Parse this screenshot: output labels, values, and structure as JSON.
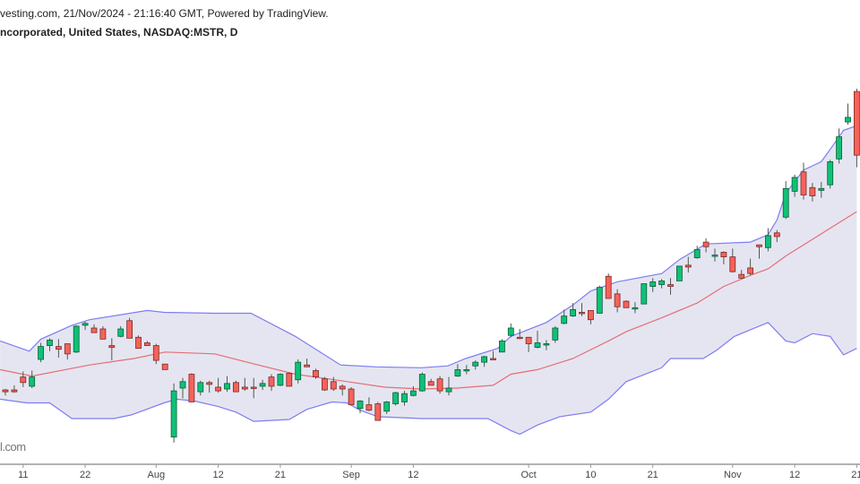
{
  "header": {
    "source_line": "vesting.com, 21/Nov/2024 - 21:16:40 GMT, Powered by TradingView.",
    "symbol_line": "ncorporated, United States, NASDAQ:MSTR, D"
  },
  "watermark": "l.com",
  "colors": {
    "up": "#0fc176",
    "up_border": "#0b5e3a",
    "down": "#f6625a",
    "down_border": "#7a2b27",
    "wick": "#4d5a52",
    "band_fill": "#e5e5f1",
    "band_line": "#7d7df2",
    "basis_line": "#e46f74",
    "axis": "#9a9a9a"
  },
  "chart_data": {
    "type": "candlestick",
    "title": "NASDAQ:MSTR, D",
    "indicator": "Bollinger Bands",
    "price_units": "USD (approximate, no price axis shown)",
    "x_ticks": [
      {
        "index": 3,
        "label": "11"
      },
      {
        "index": 10,
        "label": "22"
      },
      {
        "index": 18,
        "label": "Aug"
      },
      {
        "index": 25,
        "label": "12"
      },
      {
        "index": 32,
        "label": "21"
      },
      {
        "index": 40,
        "label": "Sep"
      },
      {
        "index": 47,
        "label": "12"
      },
      {
        "index": 60,
        "label": "Oct"
      },
      {
        "index": 67,
        "label": "10"
      },
      {
        "index": 74,
        "label": "21"
      },
      {
        "index": 83,
        "label": "Nov"
      },
      {
        "index": 90,
        "label": "12"
      },
      {
        "index": 97,
        "label": "21"
      }
    ],
    "ohlc": [
      [
        154,
        155,
        148,
        152
      ],
      [
        154,
        159,
        151,
        152
      ],
      [
        168,
        174,
        157,
        162
      ],
      [
        158,
        175,
        156,
        168
      ],
      [
        187,
        205,
        184,
        201
      ],
      [
        202,
        210,
        196,
        208
      ],
      [
        201,
        209,
        189,
        198
      ],
      [
        204,
        204,
        187,
        193
      ],
      [
        195,
        224,
        194,
        223
      ],
      [
        224,
        228,
        219,
        226
      ],
      [
        221,
        225,
        216,
        216
      ],
      [
        220,
        223,
        209,
        209
      ],
      [
        202,
        210,
        186,
        200
      ],
      [
        212,
        223,
        211,
        220
      ],
      [
        229,
        232,
        210,
        210
      ],
      [
        211,
        213,
        199,
        199
      ],
      [
        205,
        207,
        202,
        202
      ],
      [
        202,
        204,
        182,
        186
      ],
      [
        182,
        182,
        176,
        176
      ],
      [
        103,
        161,
        97,
        153
      ],
      [
        156,
        167,
        145,
        163
      ],
      [
        171,
        172,
        141,
        141
      ],
      [
        152,
        164,
        148,
        162
      ],
      [
        162,
        164,
        151,
        160
      ],
      [
        157,
        167,
        151,
        153
      ],
      [
        155,
        169,
        152,
        161
      ],
      [
        162,
        164,
        152,
        152
      ],
      [
        157,
        167,
        153,
        155
      ],
      [
        157,
        167,
        145,
        156
      ],
      [
        158,
        165,
        154,
        161
      ],
      [
        168,
        171,
        153,
        158
      ],
      [
        159,
        172,
        158,
        171
      ],
      [
        172,
        173,
        158,
        158
      ],
      [
        165,
        187,
        161,
        184
      ],
      [
        181,
        188,
        179,
        179
      ],
      [
        175,
        177,
        166,
        168
      ],
      [
        166,
        168,
        153,
        154
      ],
      [
        163,
        168,
        153,
        155
      ],
      [
        158,
        160,
        148,
        155
      ],
      [
        155,
        157,
        138,
        138
      ],
      [
        134,
        143,
        129,
        142
      ],
      [
        138,
        146,
        131,
        132
      ],
      [
        139,
        141,
        121,
        121
      ],
      [
        131,
        142,
        128,
        141
      ],
      [
        139,
        152,
        137,
        151
      ],
      [
        141,
        153,
        137,
        150
      ],
      [
        148,
        158,
        147,
        153
      ],
      [
        153,
        173,
        152,
        171
      ],
      [
        163,
        166,
        159,
        159
      ],
      [
        166,
        169,
        150,
        153
      ],
      [
        152,
        168,
        148,
        156
      ],
      [
        169,
        182,
        168,
        176
      ],
      [
        175,
        181,
        171,
        176
      ],
      [
        180,
        186,
        176,
        184
      ],
      [
        184,
        191,
        179,
        190
      ],
      [
        188,
        196,
        187,
        187
      ],
      [
        195,
        209,
        195,
        207
      ],
      [
        213,
        226,
        211,
        221
      ],
      [
        211,
        220,
        209,
        210
      ],
      [
        211,
        211,
        195,
        204
      ],
      [
        200,
        218,
        199,
        205
      ],
      [
        203,
        208,
        197,
        204
      ],
      [
        208,
        223,
        205,
        221
      ],
      [
        226,
        241,
        225,
        234
      ],
      [
        234,
        248,
        233,
        241
      ],
      [
        238,
        248,
        234,
        237
      ],
      [
        240,
        240,
        225,
        230
      ],
      [
        237,
        267,
        237,
        265
      ],
      [
        277,
        280,
        253,
        253
      ],
      [
        258,
        263,
        238,
        244
      ],
      [
        250,
        251,
        243,
        243
      ],
      [
        242,
        249,
        237,
        243
      ],
      [
        247,
        269,
        247,
        269
      ],
      [
        266,
        275,
        260,
        271
      ],
      [
        268,
        274,
        264,
        272
      ],
      [
        268,
        275,
        257,
        266
      ],
      [
        272,
        288,
        272,
        288
      ],
      [
        289,
        298,
        281,
        287
      ],
      [
        297,
        310,
        296,
        306
      ],
      [
        314,
        318,
        303,
        309
      ],
      [
        299,
        307,
        293,
        300
      ],
      [
        303,
        304,
        290,
        298
      ],
      [
        298,
        307,
        281,
        282
      ],
      [
        279,
        284,
        274,
        275
      ],
      [
        286,
        296,
        278,
        280
      ],
      [
        311,
        311,
        296,
        309
      ],
      [
        308,
        329,
        304,
        321
      ],
      [
        324,
        327,
        314,
        320
      ],
      [
        341,
        380,
        339,
        372
      ],
      [
        369,
        387,
        363,
        384
      ],
      [
        390,
        400,
        360,
        365
      ],
      [
        373,
        378,
        358,
        364
      ],
      [
        370,
        379,
        362,
        372
      ],
      [
        376,
        403,
        372,
        401
      ],
      [
        404,
        437,
        399,
        428
      ],
      [
        444,
        464,
        441,
        449
      ],
      [
        477,
        480,
        395,
        408
      ]
    ],
    "bollinger": {
      "upper": [
        [
          0.4,
          207
        ],
        [
          3.7,
          196
        ],
        [
          5,
          209
        ],
        [
          8.5,
          224
        ],
        [
          10.5,
          230
        ],
        [
          13.8,
          235
        ],
        [
          17,
          240
        ],
        [
          18.9,
          238
        ],
        [
          24.6,
          237
        ],
        [
          28.7,
          237
        ],
        [
          33.7,
          212
        ],
        [
          38.8,
          181
        ],
        [
          42.8,
          179
        ],
        [
          47.9,
          178
        ],
        [
          50.9,
          180
        ],
        [
          52.9,
          188
        ],
        [
          56.5,
          199
        ],
        [
          58,
          212
        ],
        [
          62,
          227
        ],
        [
          65,
          246
        ],
        [
          67,
          261
        ],
        [
          70,
          271
        ],
        [
          75,
          280
        ],
        [
          77,
          295
        ],
        [
          80,
          312
        ],
        [
          85,
          314
        ],
        [
          87,
          322
        ],
        [
          88,
          338
        ],
        [
          89,
          367
        ],
        [
          91,
          392
        ],
        [
          93,
          401
        ],
        [
          94.5,
          421
        ],
        [
          95.5,
          435
        ],
        [
          97,
          440
        ]
      ],
      "basis": [
        [
          0.4,
          176
        ],
        [
          4,
          169
        ],
        [
          10.5,
          181
        ],
        [
          15.5,
          188
        ],
        [
          19,
          195
        ],
        [
          24.6,
          193
        ],
        [
          28.7,
          183
        ],
        [
          33.7,
          171
        ],
        [
          38.8,
          164
        ],
        [
          43.8,
          157
        ],
        [
          47.9,
          155
        ],
        [
          51.9,
          156
        ],
        [
          56,
          159
        ],
        [
          58,
          171
        ],
        [
          61,
          176
        ],
        [
          65,
          188
        ],
        [
          69,
          207
        ],
        [
          71,
          217
        ],
        [
          75,
          232
        ],
        [
          79,
          248
        ],
        [
          82,
          266
        ],
        [
          85,
          278
        ],
        [
          87,
          285
        ],
        [
          89,
          299
        ],
        [
          91,
          311
        ],
        [
          94,
          329
        ],
        [
          97,
          347
        ]
      ],
      "lower": [
        [
          0.4,
          144
        ],
        [
          3.4,
          140
        ],
        [
          6,
          140
        ],
        [
          8.5,
          123
        ],
        [
          13.2,
          123
        ],
        [
          15.2,
          127
        ],
        [
          18.9,
          140
        ],
        [
          20.3,
          144
        ],
        [
          22.3,
          142
        ],
        [
          25,
          136
        ],
        [
          27,
          130
        ],
        [
          29,
          120
        ],
        [
          33,
          122
        ],
        [
          35,
          133
        ],
        [
          37.8,
          141
        ],
        [
          39.5,
          140
        ],
        [
          41,
          132
        ],
        [
          43,
          125
        ],
        [
          47.9,
          123
        ],
        [
          55.4,
          123
        ],
        [
          58,
          110
        ],
        [
          59,
          106
        ],
        [
          61,
          116
        ],
        [
          63.5,
          125
        ],
        [
          67,
          130
        ],
        [
          69,
          144
        ],
        [
          71,
          163
        ],
        [
          75,
          178
        ],
        [
          76,
          188
        ],
        [
          79.7,
          188
        ],
        [
          81.2,
          197
        ],
        [
          83.2,
          212
        ],
        [
          87,
          227
        ],
        [
          89,
          207
        ],
        [
          90,
          205
        ],
        [
          92,
          215
        ],
        [
          94,
          212
        ],
        [
          95.5,
          192
        ],
        [
          97,
          199
        ]
      ]
    }
  }
}
